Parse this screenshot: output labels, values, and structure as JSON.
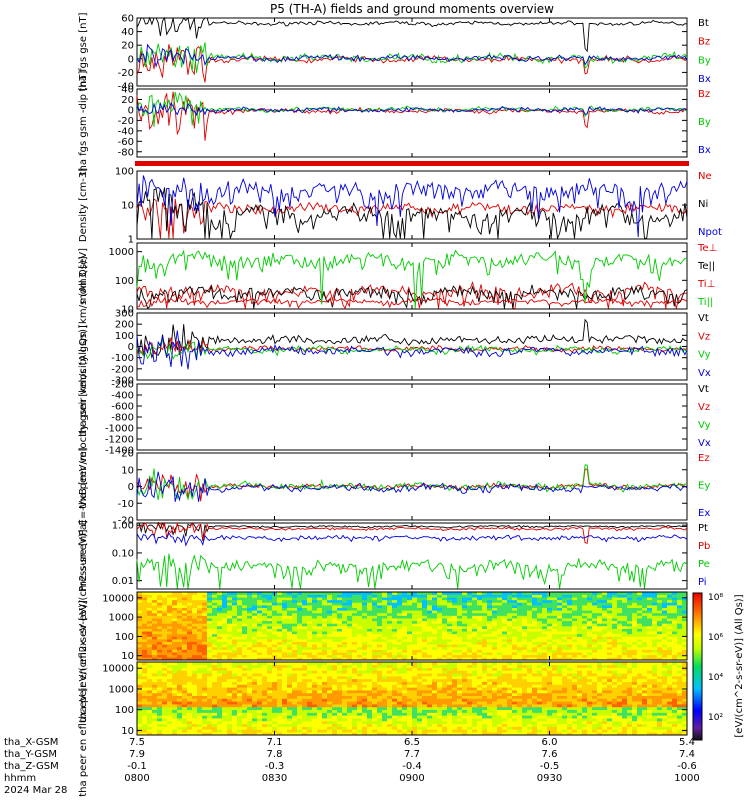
{
  "title": "P5 (TH-A) fields and ground moments overview",
  "colors": {
    "black": "#000000",
    "red": "#e00000",
    "green": "#00cc00",
    "blue": "#0000dd",
    "frame": "#000000"
  },
  "time_axis": {
    "x_label_rows": [
      "tha_X-GSM",
      "tha_Y-GSM",
      "tha_Z-GSM",
      "hhmm",
      "2024 Mar 28"
    ],
    "ticks": [
      {
        "hhmm": "0800",
        "x_gsm": "7.5",
        "y_gsm": "7.9",
        "z_gsm": "-0.1"
      },
      {
        "hhmm": "0830",
        "x_gsm": "7.1",
        "y_gsm": "7.8",
        "z_gsm": "-0.3"
      },
      {
        "hhmm": "0900",
        "x_gsm": "6.5",
        "y_gsm": "7.7",
        "z_gsm": "-0.4"
      },
      {
        "hhmm": "0930",
        "x_gsm": "6.0",
        "y_gsm": "7.6",
        "z_gsm": "-0.5"
      },
      {
        "hhmm": "1000",
        "x_gsm": "5.4",
        "y_gsm": "7.4",
        "z_gsm": "-0.6"
      }
    ]
  },
  "chart_data": [
    {
      "type": "line",
      "ylabel": "tha fgs gse [nT]",
      "ylim": [
        -40,
        60
      ],
      "yticks": [
        "60",
        "40",
        "20",
        "0",
        "-20",
        "-40"
      ],
      "series": [
        {
          "name": "Bt",
          "color": "black"
        },
        {
          "name": "Bz",
          "color": "red"
        },
        {
          "name": "By",
          "color": "green"
        },
        {
          "name": "Bx",
          "color": "blue"
        }
      ]
    },
    {
      "type": "line",
      "ylabel": "tha fgs gsm -dip [nT]",
      "ylim": [
        -90,
        40
      ],
      "yticks": [
        "40",
        "20",
        "0",
        "-20",
        "-40",
        "-60",
        "-80"
      ],
      "series": [
        {
          "name": "Bz",
          "color": "red"
        },
        {
          "name": "By",
          "color": "green"
        },
        {
          "name": "Bx",
          "color": "blue"
        }
      ]
    },
    {
      "type": "bar",
      "ylabel": "",
      "series": [
        {
          "name": "flag",
          "color": "red"
        }
      ]
    },
    {
      "type": "line",
      "ylabel": "Density [cm-3]",
      "scale": "log",
      "ylim": [
        1,
        100
      ],
      "yticks": [
        "100",
        "10",
        "1"
      ],
      "series": [
        {
          "name": "Ne",
          "color": "red"
        },
        {
          "name": "Ni",
          "color": "black"
        },
        {
          "name": "Npot",
          "color": "blue"
        }
      ]
    },
    {
      "type": "line",
      "ylabel": "mom3 [eV]",
      "scale": "log",
      "ylim": [
        10,
        2000
      ],
      "yticks": [
        "1000",
        "100",
        "10"
      ],
      "series": [
        {
          "name": "Te⊥",
          "color": "red"
        },
        {
          "name": "Te||",
          "color": "black"
        },
        {
          "name": "Ti⊥",
          "color": "red"
        },
        {
          "name": "Ti||",
          "color": "green"
        }
      ]
    },
    {
      "type": "line",
      "ylabel": "tha peir velocity gsm [km/s (All Qs)]",
      "ylim": [
        -300,
        300
      ],
      "yticks": [
        "300",
        "200",
        "100",
        "0",
        "-100",
        "-200",
        "-300"
      ],
      "series": [
        {
          "name": "Vt",
          "color": "black"
        },
        {
          "name": "Vz",
          "color": "red"
        },
        {
          "name": "Vy",
          "color": "green"
        },
        {
          "name": "Vx",
          "color": "blue"
        }
      ]
    },
    {
      "type": "line",
      "ylabel": "tha peer velocity gsm [km/s (All Qs)]",
      "ylim": [
        -1400,
        -200
      ],
      "yticks": [
        "-200",
        "-400",
        "-600",
        "-800",
        "-1000",
        "-1200",
        "-1400"
      ],
      "series": [
        {
          "name": "Vt",
          "color": "black"
        },
        {
          "name": "Vz",
          "color": "red"
        },
        {
          "name": "Vy",
          "color": "green"
        },
        {
          "name": "Vx",
          "color": "blue"
        }
      ]
    },
    {
      "type": "line",
      "ylabel": "E=-VxB [mV/m]",
      "ylim": [
        -20,
        20
      ],
      "yticks": [
        "20",
        "10",
        "0",
        "-10",
        "-20"
      ],
      "series": [
        {
          "name": "Ez",
          "color": "red"
        },
        {
          "name": "Ey",
          "color": "green"
        },
        {
          "name": "Ex",
          "color": "blue"
        }
      ]
    },
    {
      "type": "line",
      "ylabel": "Pressure [nPa]",
      "scale": "log",
      "ylim": [
        0.005,
        1.2
      ],
      "yticks": [
        "1.00",
        "0.10",
        "0.01"
      ],
      "series": [
        {
          "name": "Pt",
          "color": "black"
        },
        {
          "name": "Pb",
          "color": "red"
        },
        {
          "name": "Pe",
          "color": "green"
        },
        {
          "name": "Pi",
          "color": "blue"
        }
      ]
    },
    {
      "type": "heatmap",
      "ylabel": "tha peir en eflux eV [eV/(cm2-s-sr-eV)]",
      "scale": "log",
      "ylim": [
        6,
        20000
      ],
      "yticks": [
        "10000",
        "1000",
        "100",
        "10"
      ]
    },
    {
      "type": "heatmap",
      "ylabel": "tha peer en eflux eV [eV/(cm2-s-sr-eV)]",
      "scale": "log",
      "ylim": [
        6,
        20000
      ],
      "yticks": [
        "10000",
        "1000",
        "100",
        "10"
      ]
    }
  ],
  "colorbar": {
    "label": "[eV/(cm^2-s-sr-eV)] (All Qs)]",
    "ticks": [
      "10⁸",
      "10⁶",
      "10⁴",
      "10²"
    ]
  }
}
